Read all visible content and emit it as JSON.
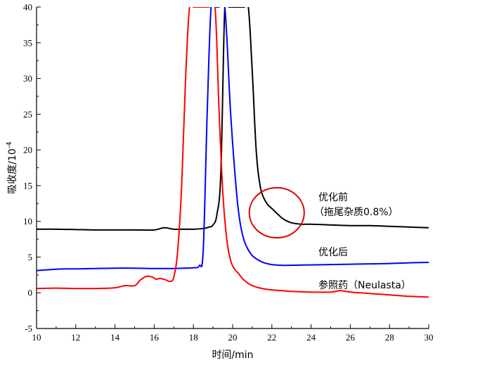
{
  "chart_data": {
    "type": "line",
    "title": "",
    "xlabel": "时间/min",
    "ylabel": "吸收度/10",
    "ylabel_exponent": "-4",
    "xlim": [
      10,
      30
    ],
    "ylim": [
      -5,
      40
    ],
    "xticks": [
      10,
      12,
      14,
      16,
      18,
      20,
      22,
      24,
      26,
      28,
      30
    ],
    "yticks": [
      -5,
      0,
      5,
      10,
      15,
      20,
      25,
      30,
      35,
      40
    ],
    "grid": false,
    "series": [
      {
        "label": "优化前",
        "label_line2": "（拖尾杂质0.8%）",
        "color": "#000000",
        "x": [
          10,
          11,
          12,
          13,
          14,
          15,
          16,
          16.5,
          17,
          17.5,
          18,
          18.5,
          18.8,
          19.0,
          19.2,
          19.4,
          19.6,
          19.8,
          20.0,
          20.2,
          20.4,
          20.6,
          20.8,
          21.0,
          21.2,
          21.4,
          21.6,
          21.8,
          22.0,
          22.3,
          22.6,
          23.0,
          23.5,
          24,
          25,
          26,
          27,
          28,
          29,
          30
        ],
        "y": [
          8.9,
          8.9,
          8.85,
          8.8,
          8.8,
          8.8,
          8.8,
          9.1,
          8.9,
          8.9,
          8.9,
          9.0,
          9.2,
          9.5,
          11,
          17,
          40,
          40,
          40,
          40,
          40,
          40,
          40,
          31,
          20,
          15,
          13.2,
          12.3,
          11.8,
          11.0,
          10.3,
          9.8,
          9.6,
          9.6,
          9.5,
          9.4,
          9.4,
          9.3,
          9.2,
          9.1
        ]
      },
      {
        "label": "优化后",
        "color": "#0000ff",
        "x": [
          10,
          11,
          12,
          13,
          14,
          15,
          16,
          17,
          17.5,
          18,
          18.3,
          18.5,
          18.7,
          18.9,
          19.1,
          19.3,
          19.6,
          19.9,
          20.2,
          20.4,
          20.6,
          20.8,
          21.0,
          21.3,
          21.6,
          22.0,
          22.5,
          23,
          24,
          25,
          26,
          27,
          28,
          29,
          30
        ],
        "y": [
          3.1,
          3.3,
          3.35,
          3.4,
          3.45,
          3.45,
          3.4,
          3.4,
          3.45,
          3.5,
          3.8,
          6,
          25,
          40,
          40,
          40,
          40,
          25,
          14,
          9.5,
          7.2,
          6,
          5.2,
          4.6,
          4.2,
          3.95,
          3.85,
          3.85,
          3.9,
          3.95,
          4.0,
          4.05,
          4.1,
          4.2,
          4.25
        ]
      },
      {
        "label": "参照药（Neulasta）",
        "color": "#ff0000",
        "x": [
          10,
          11,
          12,
          13,
          14,
          14.5,
          15.0,
          15.3,
          15.6,
          15.9,
          16.1,
          16.3,
          16.6,
          16.8,
          17.0,
          17.2,
          17.4,
          17.6,
          17.8,
          18.0,
          18.2,
          18.5,
          18.8,
          19.1,
          19.3,
          19.5,
          19.7,
          19.9,
          20.1,
          20.3,
          20.5,
          20.8,
          21.1,
          21.5,
          22,
          22.5,
          23,
          24,
          25,
          25.5,
          26,
          27,
          28,
          29,
          30
        ],
        "y": [
          0.6,
          0.65,
          0.6,
          0.6,
          0.7,
          1.0,
          1.0,
          1.8,
          2.3,
          2.2,
          1.9,
          2.0,
          1.8,
          1.6,
          2.2,
          6,
          15,
          30,
          40,
          40,
          40,
          40,
          40,
          40,
          26,
          14,
          7.5,
          4.5,
          3.3,
          2.7,
          2.0,
          1.3,
          0.9,
          0.6,
          0.4,
          0.3,
          0.2,
          0.1,
          0.1,
          0.3,
          0.1,
          -0.1,
          -0.3,
          -0.5,
          -0.6
        ]
      }
    ],
    "annotations": [
      {
        "type": "circle",
        "color": "#e00000",
        "center": [
          22.25,
          11.2
        ],
        "radius_x_data": 1.4,
        "radius_y_data": 3.5
      }
    ]
  }
}
